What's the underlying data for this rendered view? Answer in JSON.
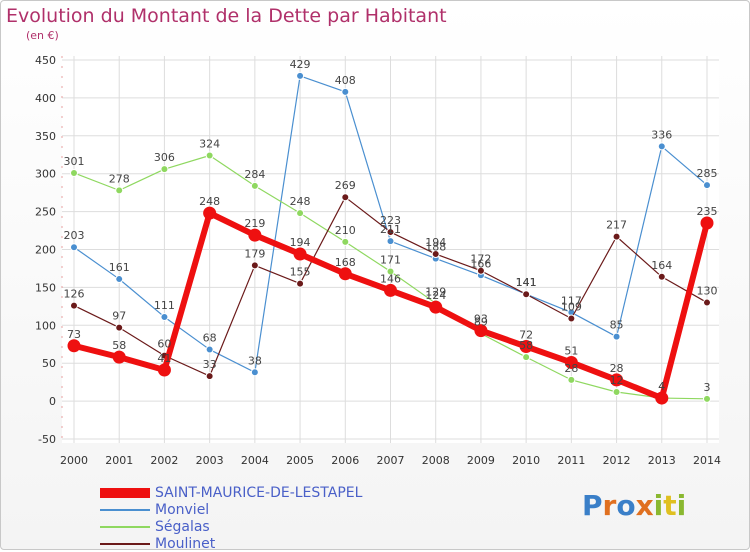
{
  "title": "Evolution du Montant de la Dette par Habitant",
  "unit": "(en €)",
  "logo": [
    "P",
    "r",
    "o",
    "x",
    "i",
    "t",
    "i"
  ],
  "chart_data": {
    "type": "line",
    "x": [
      2000,
      2001,
      2002,
      2003,
      2004,
      2005,
      2006,
      2007,
      2008,
      2009,
      2010,
      2011,
      2012,
      2013,
      2014
    ],
    "ylim": [
      -50,
      450
    ],
    "yticks": [
      -50,
      0,
      50,
      100,
      150,
      200,
      250,
      300,
      350,
      400,
      450
    ],
    "grid": true,
    "legend": "bottom-left",
    "series": [
      {
        "name": "Monviel",
        "color": "#4a8fd0",
        "values": [
          203,
          161,
          111,
          68,
          38,
          429,
          408,
          211,
          188,
          166,
          141,
          117,
          85,
          336,
          285
        ]
      },
      {
        "name": "Ségalas",
        "color": "#8fd860",
        "values": [
          301,
          278,
          306,
          324,
          284,
          248,
          210,
          171,
          129,
          89,
          58,
          28,
          12,
          4,
          3
        ]
      },
      {
        "name": "Moulinet",
        "color": "#6b1a1a",
        "values": [
          126,
          97,
          60,
          33,
          179,
          155,
          269,
          223,
          194,
          172,
          141,
          109,
          217,
          164,
          130
        ]
      },
      {
        "name": "SAINT-MAURICE-DE-LESTAPEL",
        "color": "#ee1010",
        "values": [
          73,
          58,
          41,
          248,
          219,
          194,
          168,
          146,
          124,
          93,
          72,
          51,
          28,
          4,
          235
        ]
      }
    ]
  }
}
